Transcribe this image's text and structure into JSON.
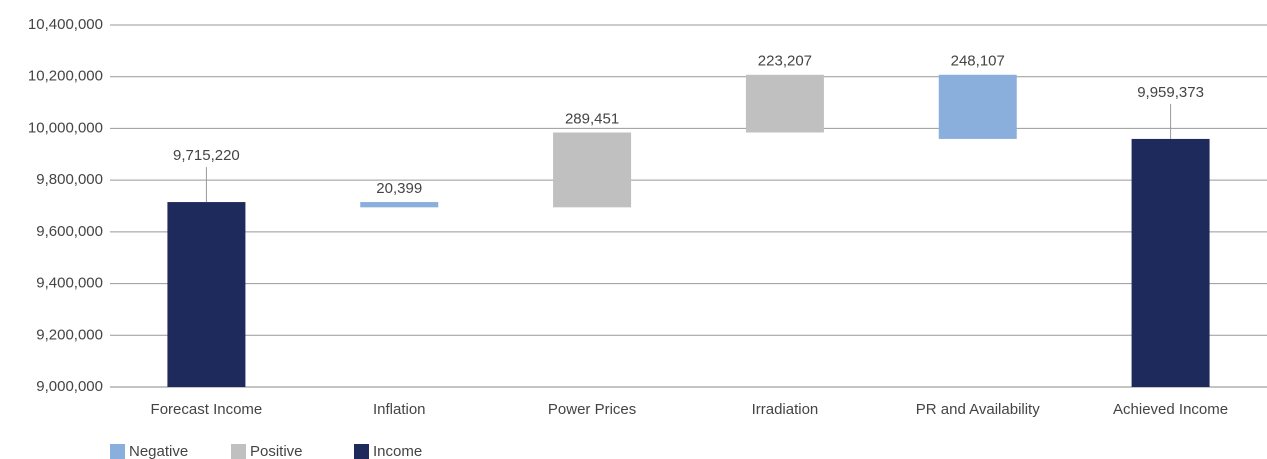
{
  "chart_data": {
    "type": "waterfall",
    "categories": [
      "Forecast Income",
      "Inflation",
      "Power Prices",
      "Irradiation",
      "PR and Availability",
      "Achieved Income"
    ],
    "series": [
      {
        "name": "Negative",
        "color": "#8aafdc",
        "values": [
          null,
          20399,
          null,
          null,
          248107,
          null
        ],
        "value_labels": [
          null,
          "20,399",
          null,
          null,
          "248,107",
          null
        ]
      },
      {
        "name": "Positive",
        "color": "#c0c0c0",
        "values": [
          null,
          null,
          289451,
          223207,
          null,
          null
        ],
        "value_labels": [
          null,
          null,
          "289,451",
          "223,207",
          null,
          null
        ]
      },
      {
        "name": "Income",
        "color": "#1e2a5c",
        "values": [
          9715220,
          null,
          null,
          null,
          null,
          9959373
        ],
        "value_labels": [
          "9,715,220",
          null,
          null,
          null,
          null,
          "9,959,373"
        ]
      }
    ],
    "ylim": [
      9000000,
      10400000
    ],
    "yticks": [
      {
        "value": 9000000,
        "label": "9,000,000"
      },
      {
        "value": 9200000,
        "label": "9,200,000"
      },
      {
        "value": 9400000,
        "label": "9,400,000"
      },
      {
        "value": 9600000,
        "label": "9,600,000"
      },
      {
        "value": 9800000,
        "label": "9,800,000"
      },
      {
        "value": 10000000,
        "label": "10,000,000"
      },
      {
        "value": 10200000,
        "label": "10,200,000"
      },
      {
        "value": 10400000,
        "label": "10,400,000"
      }
    ],
    "grid": true
  }
}
